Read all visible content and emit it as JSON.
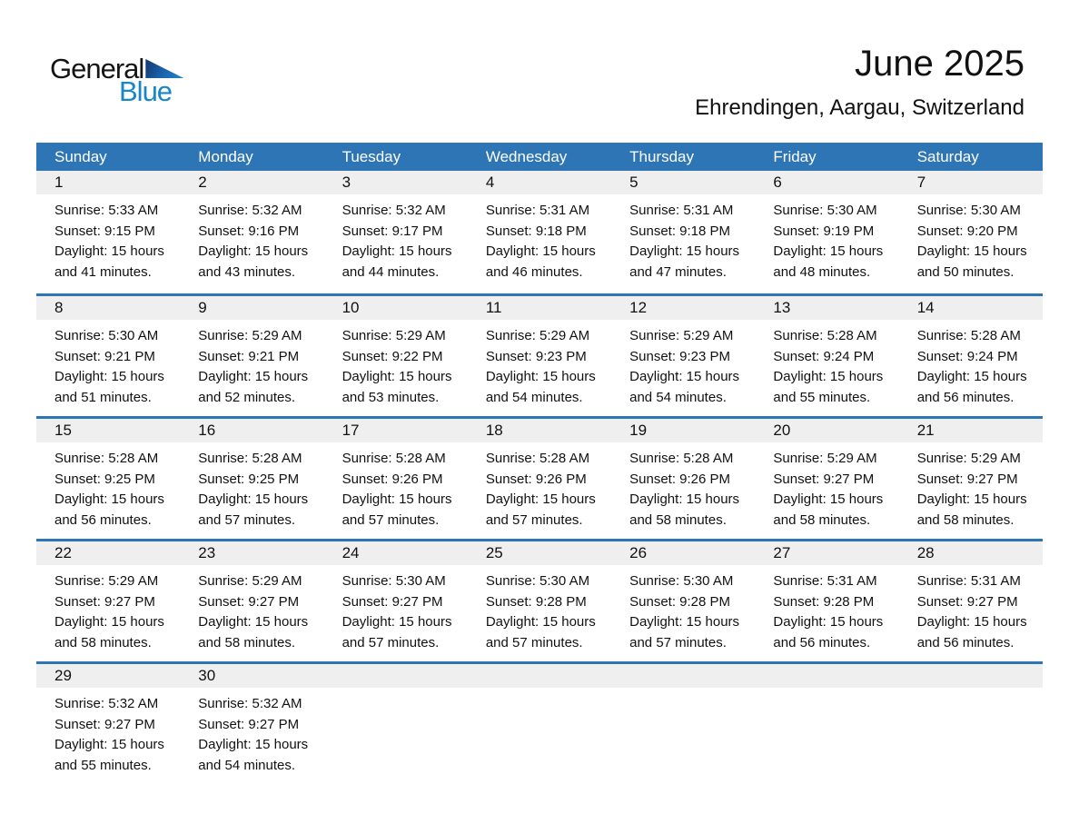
{
  "logo": {
    "text_general": "General",
    "text_blue": "Blue"
  },
  "title": "June 2025",
  "location": "Ehrendingen, Aargau, Switzerland",
  "weekdays": [
    "Sunday",
    "Monday",
    "Tuesday",
    "Wednesday",
    "Thursday",
    "Friday",
    "Saturday"
  ],
  "weeks": [
    [
      {
        "day": "1",
        "lines": [
          "Sunrise: 5:33 AM",
          "Sunset: 9:15 PM",
          "Daylight: 15 hours",
          "and 41 minutes."
        ]
      },
      {
        "day": "2",
        "lines": [
          "Sunrise: 5:32 AM",
          "Sunset: 9:16 PM",
          "Daylight: 15 hours",
          "and 43 minutes."
        ]
      },
      {
        "day": "3",
        "lines": [
          "Sunrise: 5:32 AM",
          "Sunset: 9:17 PM",
          "Daylight: 15 hours",
          "and 44 minutes."
        ]
      },
      {
        "day": "4",
        "lines": [
          "Sunrise: 5:31 AM",
          "Sunset: 9:18 PM",
          "Daylight: 15 hours",
          "and 46 minutes."
        ]
      },
      {
        "day": "5",
        "lines": [
          "Sunrise: 5:31 AM",
          "Sunset: 9:18 PM",
          "Daylight: 15 hours",
          "and 47 minutes."
        ]
      },
      {
        "day": "6",
        "lines": [
          "Sunrise: 5:30 AM",
          "Sunset: 9:19 PM",
          "Daylight: 15 hours",
          "and 48 minutes."
        ]
      },
      {
        "day": "7",
        "lines": [
          "Sunrise: 5:30 AM",
          "Sunset: 9:20 PM",
          "Daylight: 15 hours",
          "and 50 minutes."
        ]
      }
    ],
    [
      {
        "day": "8",
        "lines": [
          "Sunrise: 5:30 AM",
          "Sunset: 9:21 PM",
          "Daylight: 15 hours",
          "and 51 minutes."
        ]
      },
      {
        "day": "9",
        "lines": [
          "Sunrise: 5:29 AM",
          "Sunset: 9:21 PM",
          "Daylight: 15 hours",
          "and 52 minutes."
        ]
      },
      {
        "day": "10",
        "lines": [
          "Sunrise: 5:29 AM",
          "Sunset: 9:22 PM",
          "Daylight: 15 hours",
          "and 53 minutes."
        ]
      },
      {
        "day": "11",
        "lines": [
          "Sunrise: 5:29 AM",
          "Sunset: 9:23 PM",
          "Daylight: 15 hours",
          "and 54 minutes."
        ]
      },
      {
        "day": "12",
        "lines": [
          "Sunrise: 5:29 AM",
          "Sunset: 9:23 PM",
          "Daylight: 15 hours",
          "and 54 minutes."
        ]
      },
      {
        "day": "13",
        "lines": [
          "Sunrise: 5:28 AM",
          "Sunset: 9:24 PM",
          "Daylight: 15 hours",
          "and 55 minutes."
        ]
      },
      {
        "day": "14",
        "lines": [
          "Sunrise: 5:28 AM",
          "Sunset: 9:24 PM",
          "Daylight: 15 hours",
          "and 56 minutes."
        ]
      }
    ],
    [
      {
        "day": "15",
        "lines": [
          "Sunrise: 5:28 AM",
          "Sunset: 9:25 PM",
          "Daylight: 15 hours",
          "and 56 minutes."
        ]
      },
      {
        "day": "16",
        "lines": [
          "Sunrise: 5:28 AM",
          "Sunset: 9:25 PM",
          "Daylight: 15 hours",
          "and 57 minutes."
        ]
      },
      {
        "day": "17",
        "lines": [
          "Sunrise: 5:28 AM",
          "Sunset: 9:26 PM",
          "Daylight: 15 hours",
          "and 57 minutes."
        ]
      },
      {
        "day": "18",
        "lines": [
          "Sunrise: 5:28 AM",
          "Sunset: 9:26 PM",
          "Daylight: 15 hours",
          "and 57 minutes."
        ]
      },
      {
        "day": "19",
        "lines": [
          "Sunrise: 5:28 AM",
          "Sunset: 9:26 PM",
          "Daylight: 15 hours",
          "and 58 minutes."
        ]
      },
      {
        "day": "20",
        "lines": [
          "Sunrise: 5:29 AM",
          "Sunset: 9:27 PM",
          "Daylight: 15 hours",
          "and 58 minutes."
        ]
      },
      {
        "day": "21",
        "lines": [
          "Sunrise: 5:29 AM",
          "Sunset: 9:27 PM",
          "Daylight: 15 hours",
          "and 58 minutes."
        ]
      }
    ],
    [
      {
        "day": "22",
        "lines": [
          "Sunrise: 5:29 AM",
          "Sunset: 9:27 PM",
          "Daylight: 15 hours",
          "and 58 minutes."
        ]
      },
      {
        "day": "23",
        "lines": [
          "Sunrise: 5:29 AM",
          "Sunset: 9:27 PM",
          "Daylight: 15 hours",
          "and 58 minutes."
        ]
      },
      {
        "day": "24",
        "lines": [
          "Sunrise: 5:30 AM",
          "Sunset: 9:27 PM",
          "Daylight: 15 hours",
          "and 57 minutes."
        ]
      },
      {
        "day": "25",
        "lines": [
          "Sunrise: 5:30 AM",
          "Sunset: 9:28 PM",
          "Daylight: 15 hours",
          "and 57 minutes."
        ]
      },
      {
        "day": "26",
        "lines": [
          "Sunrise: 5:30 AM",
          "Sunset: 9:28 PM",
          "Daylight: 15 hours",
          "and 57 minutes."
        ]
      },
      {
        "day": "27",
        "lines": [
          "Sunrise: 5:31 AM",
          "Sunset: 9:28 PM",
          "Daylight: 15 hours",
          "and 56 minutes."
        ]
      },
      {
        "day": "28",
        "lines": [
          "Sunrise: 5:31 AM",
          "Sunset: 9:27 PM",
          "Daylight: 15 hours",
          "and 56 minutes."
        ]
      }
    ],
    [
      {
        "day": "29",
        "lines": [
          "Sunrise: 5:32 AM",
          "Sunset: 9:27 PM",
          "Daylight: 15 hours",
          "and 55 minutes."
        ]
      },
      {
        "day": "30",
        "lines": [
          "Sunrise: 5:32 AM",
          "Sunset: 9:27 PM",
          "Daylight: 15 hours",
          "and 54 minutes."
        ]
      },
      null,
      null,
      null,
      null,
      null
    ]
  ],
  "colors": {
    "header_blue": "#2e75b6",
    "row_separator_blue": "#2e75b6",
    "day_band_gray": "#efefef",
    "logo_blue": "#1787c8",
    "logo_triangle_blue": "#1a5ea6"
  }
}
